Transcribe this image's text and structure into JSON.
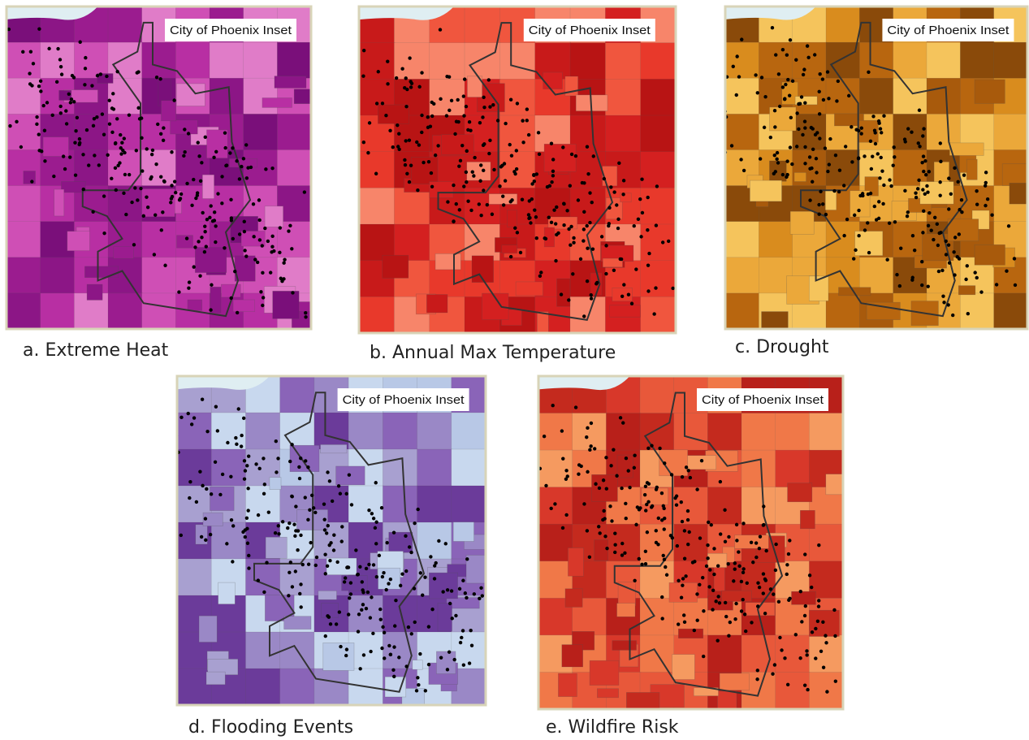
{
  "panels": [
    {
      "inset_label": "City of Phoenix Inset",
      "caption": "a. Extreme Heat"
    },
    {
      "inset_label": "City of Phoenix Inset",
      "caption": "b. Annual Max Temperature"
    },
    {
      "inset_label": "City of Phoenix Inset",
      "caption": "c. Drought"
    },
    {
      "inset_label": "City of Phoenix Inset",
      "caption": "d. Flooding Events"
    },
    {
      "inset_label": "City of Phoenix Inset",
      "caption": "e. Wildfire Risk"
    }
  ]
}
